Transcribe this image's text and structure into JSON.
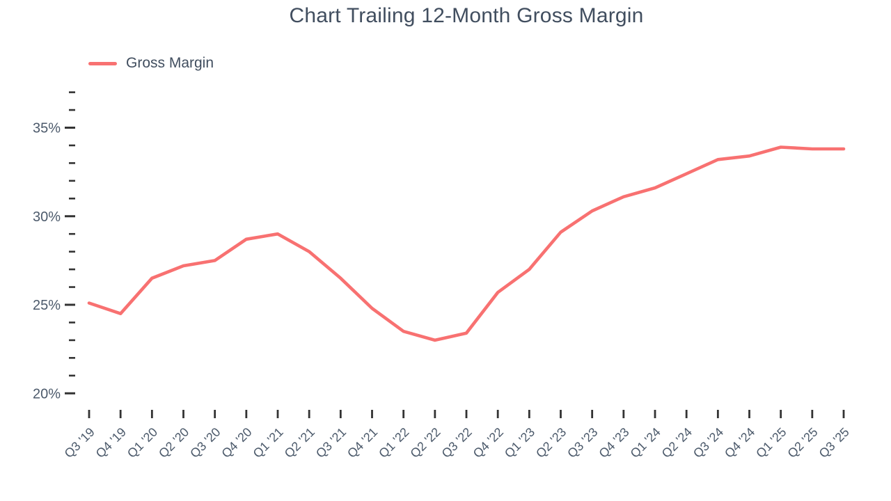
{
  "title": "Chart Trailing 12-Month Gross Margin",
  "legend": [
    {
      "label": "Gross Margin",
      "color": "#f87171"
    }
  ],
  "chart_data": {
    "type": "line",
    "title": "Chart Trailing 12-Month Gross Margin",
    "xlabel": "",
    "ylabel": "",
    "categories": [
      "Q3 '19",
      "Q4 '19",
      "Q1 '20",
      "Q2 '20",
      "Q3 '20",
      "Q4 '20",
      "Q1 '21",
      "Q2 '21",
      "Q3 '21",
      "Q4 '21",
      "Q1 '22",
      "Q2 '22",
      "Q3 '22",
      "Q4 '22",
      "Q1 '23",
      "Q2 '23",
      "Q3 '23",
      "Q4 '23",
      "Q1 '24",
      "Q2 '24",
      "Q3 '24",
      "Q4 '24",
      "Q1 '25",
      "Q2 '25",
      "Q3 '25"
    ],
    "series": [
      {
        "name": "Gross Margin",
        "color": "#f87171",
        "values": [
          25.1,
          24.5,
          26.5,
          27.2,
          27.5,
          28.7,
          29.0,
          28.0,
          26.5,
          24.8,
          23.5,
          23.0,
          23.4,
          25.7,
          27.0,
          29.1,
          30.3,
          31.1,
          31.6,
          32.4,
          33.2,
          33.4,
          33.9,
          33.8,
          33.8
        ]
      }
    ],
    "y_axis": {
      "min": 20,
      "max": 37,
      "major_tick_step": 5,
      "minor_tick_step": 1,
      "unit": "%",
      "major_labels": [
        "20%",
        "25%",
        "30%",
        "35%"
      ]
    },
    "grid": false,
    "legend_position": "top-left"
  },
  "colors": {
    "line": "#f87171",
    "title_text": "#414e5f",
    "axis_label_text": "#4c5a6b",
    "tick_mark": "#333333",
    "background": "#ffffff"
  }
}
